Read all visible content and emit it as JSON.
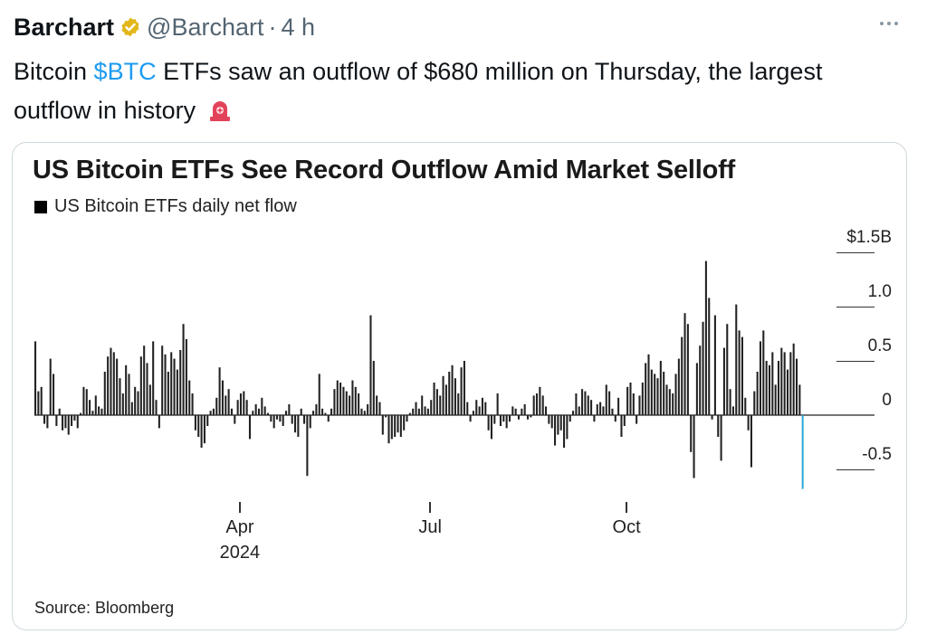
{
  "tweet": {
    "author_name": "Barchart",
    "handle": "@Barchart",
    "separator": "·",
    "time": "4 h",
    "text_part1": "Bitcoin ",
    "cashtag": "$BTC",
    "text_part2": " ETFs saw an outflow of $680 million on Thursday, the largest outflow in history",
    "emoji": "rotating-light-emoji",
    "more_icon": "more-icon",
    "verified_icon": "verified-badge-icon"
  },
  "chart_data": {
    "type": "bar",
    "title": "US Bitcoin ETFs See Record Outflow Amid Market Selloff",
    "legend": "US Bitcoin ETFs daily net flow",
    "source": "Source: Bloomberg",
    "ylim": [
      -0.7,
      1.5
    ],
    "yticks": [
      {
        "value": 1.5,
        "label": "$1.5B"
      },
      {
        "value": 1.0,
        "label": "1.0"
      },
      {
        "value": 0.5,
        "label": "0.5"
      },
      {
        "value": 0,
        "label": "0"
      },
      {
        "value": -0.5,
        "label": "-0.5"
      }
    ],
    "xticks": [
      {
        "index": 68,
        "label": "Apr",
        "sublabel": "2024"
      },
      {
        "index": 131,
        "label": "Jul",
        "sublabel": ""
      },
      {
        "index": 196,
        "label": "Oct",
        "sublabel": ""
      }
    ],
    "highlight_color": "#29a8d8",
    "bar_color": "#222222",
    "values": [
      0.68,
      0.22,
      0.26,
      -0.08,
      -0.12,
      0.52,
      0.38,
      -0.1,
      0.06,
      -0.14,
      -0.12,
      -0.18,
      -0.1,
      -0.05,
      -0.12,
      0.02,
      0.26,
      0.24,
      0.14,
      0.04,
      0.18,
      0.08,
      0.06,
      0.4,
      0.54,
      0.62,
      0.58,
      0.52,
      0.34,
      0.2,
      0.46,
      0.38,
      0.12,
      0.26,
      0.22,
      0.54,
      0.64,
      0.48,
      0.28,
      0.68,
      0.14,
      -0.12,
      0.64,
      0.56,
      0.4,
      0.58,
      0.52,
      0.42,
      0.6,
      0.84,
      0.7,
      0.32,
      0.2,
      -0.14,
      -0.2,
      -0.3,
      -0.26,
      -0.1,
      0.04,
      0.06,
      0.16,
      0.44,
      0.32,
      0.18,
      0.24,
      0.06,
      -0.08,
      0.14,
      0.2,
      0.22,
      0.14,
      -0.22,
      0.04,
      0.1,
      0.06,
      0.16,
      0.08,
      0.02,
      -0.06,
      -0.12,
      -0.04,
      -0.06,
      -0.1,
      0.04,
      0.1,
      -0.08,
      -0.16,
      -0.2,
      0.06,
      -0.08,
      -0.56,
      -0.12,
      0.04,
      0.1,
      0.38,
      0.06,
      0.02,
      -0.06,
      0.06,
      0.24,
      0.32,
      0.3,
      0.26,
      0.22,
      0.18,
      0.32,
      0.26,
      0.2,
      0.06,
      0.04,
      0.1,
      0.92,
      0.5,
      0.18,
      0.12,
      -0.18,
      -0.02,
      -0.26,
      -0.22,
      -0.2,
      -0.16,
      -0.2,
      -0.14,
      -0.06,
      0.02,
      0.06,
      0.12,
      0.06,
      0.18,
      0.08,
      0.06,
      0.14,
      0.3,
      0.24,
      0.18,
      0.36,
      0.28,
      0.4,
      0.46,
      0.34,
      0.2,
      0.44,
      0.5,
      0.12,
      -0.06,
      0.04,
      0.14,
      0.08,
      0.16,
      0.12,
      -0.14,
      -0.22,
      -0.08,
      0.2,
      -0.1,
      -0.06,
      -0.12,
      -0.06,
      0.08,
      0.06,
      -0.04,
      0.06,
      0.1,
      -0.04,
      -0.02,
      0.18,
      0.2,
      0.26,
      0.18,
      0.08,
      -0.08,
      -0.12,
      -0.28,
      -0.18,
      -0.14,
      -0.3,
      -0.22,
      -0.06,
      0.04,
      0.2,
      0.08,
      0.24,
      0.22,
      0.18,
      0.14,
      -0.06,
      0.1,
      0.12,
      0.08,
      0.28,
      0.22,
      0.06,
      -0.06,
      0.16,
      -0.2,
      -0.1,
      0.26,
      0.3,
      0.2,
      -0.08,
      0.18,
      0.3,
      0.48,
      0.56,
      0.42,
      0.38,
      0.34,
      0.5,
      0.4,
      0.28,
      0.24,
      0.2,
      0.38,
      0.52,
      0.72,
      0.94,
      0.84,
      -0.34,
      -0.58,
      0.48,
      0.64,
      0.86,
      1.42,
      1.08,
      -0.04,
      0.92,
      -0.2,
      -0.42,
      0.62,
      0.84,
      0.24,
      0.08,
      1.02,
      0.78,
      0.72,
      0.16,
      -0.14,
      -0.48,
      0.22,
      0.4,
      0.68,
      0.78,
      0.5,
      0.46,
      0.58,
      0.28,
      0.5,
      0.62,
      0.58,
      0.42,
      0.58,
      0.66,
      0.52,
      0.28,
      -0.68
    ]
  }
}
